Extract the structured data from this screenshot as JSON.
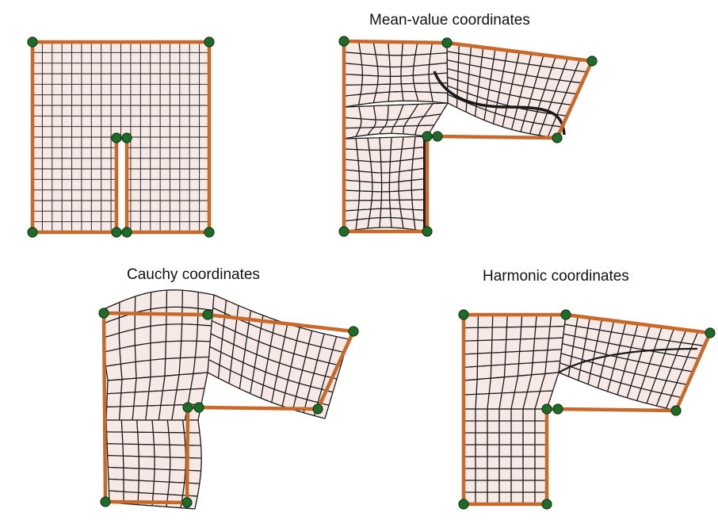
{
  "figure": {
    "panels": [
      {
        "id": "original",
        "title": ""
      },
      {
        "id": "mean-value",
        "title": "Mean-value coordinates"
      },
      {
        "id": "cauchy",
        "title": "Cauchy coordinates"
      },
      {
        "id": "harmonic",
        "title": "Harmonic coordinates"
      }
    ]
  },
  "colors": {
    "cage": "#c8692a",
    "vertex_fill": "#1f6b2a",
    "vertex_stroke": "#0e3b14",
    "grid_line": "#1a1a1a",
    "grid_fill": "#f6e9e6",
    "background": "#ffffff"
  },
  "grid": {
    "cells_x": 18,
    "cells_y": 18
  }
}
